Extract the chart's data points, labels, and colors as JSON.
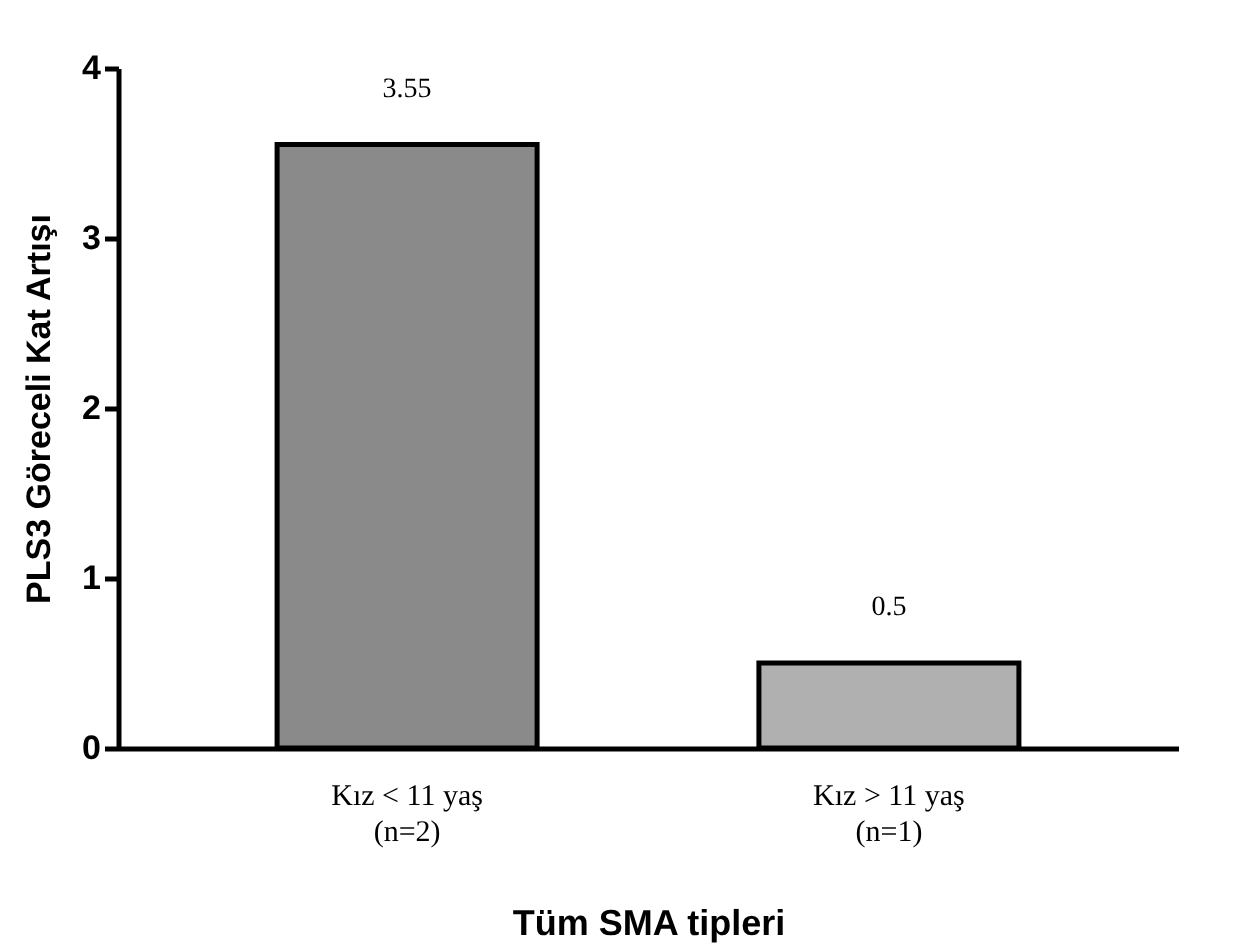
{
  "chart_data": {
    "type": "bar",
    "xlabel": "Tüm SMA tipleri",
    "ylabel": "PLS3 Göreceli  Kat Artışı",
    "categories": [
      "Kız < 11 yaş\n(n=2)",
      "Kız > 11 yaş\n(n=1)"
    ],
    "values": [
      3.55,
      0.5
    ],
    "colors": [
      "#8a8a8a",
      "#b0b0b0"
    ],
    "ylim": [
      0,
      4
    ],
    "yticks": [
      0,
      1,
      2,
      3,
      4
    ],
    "grid": false,
    "data_labels": true
  }
}
